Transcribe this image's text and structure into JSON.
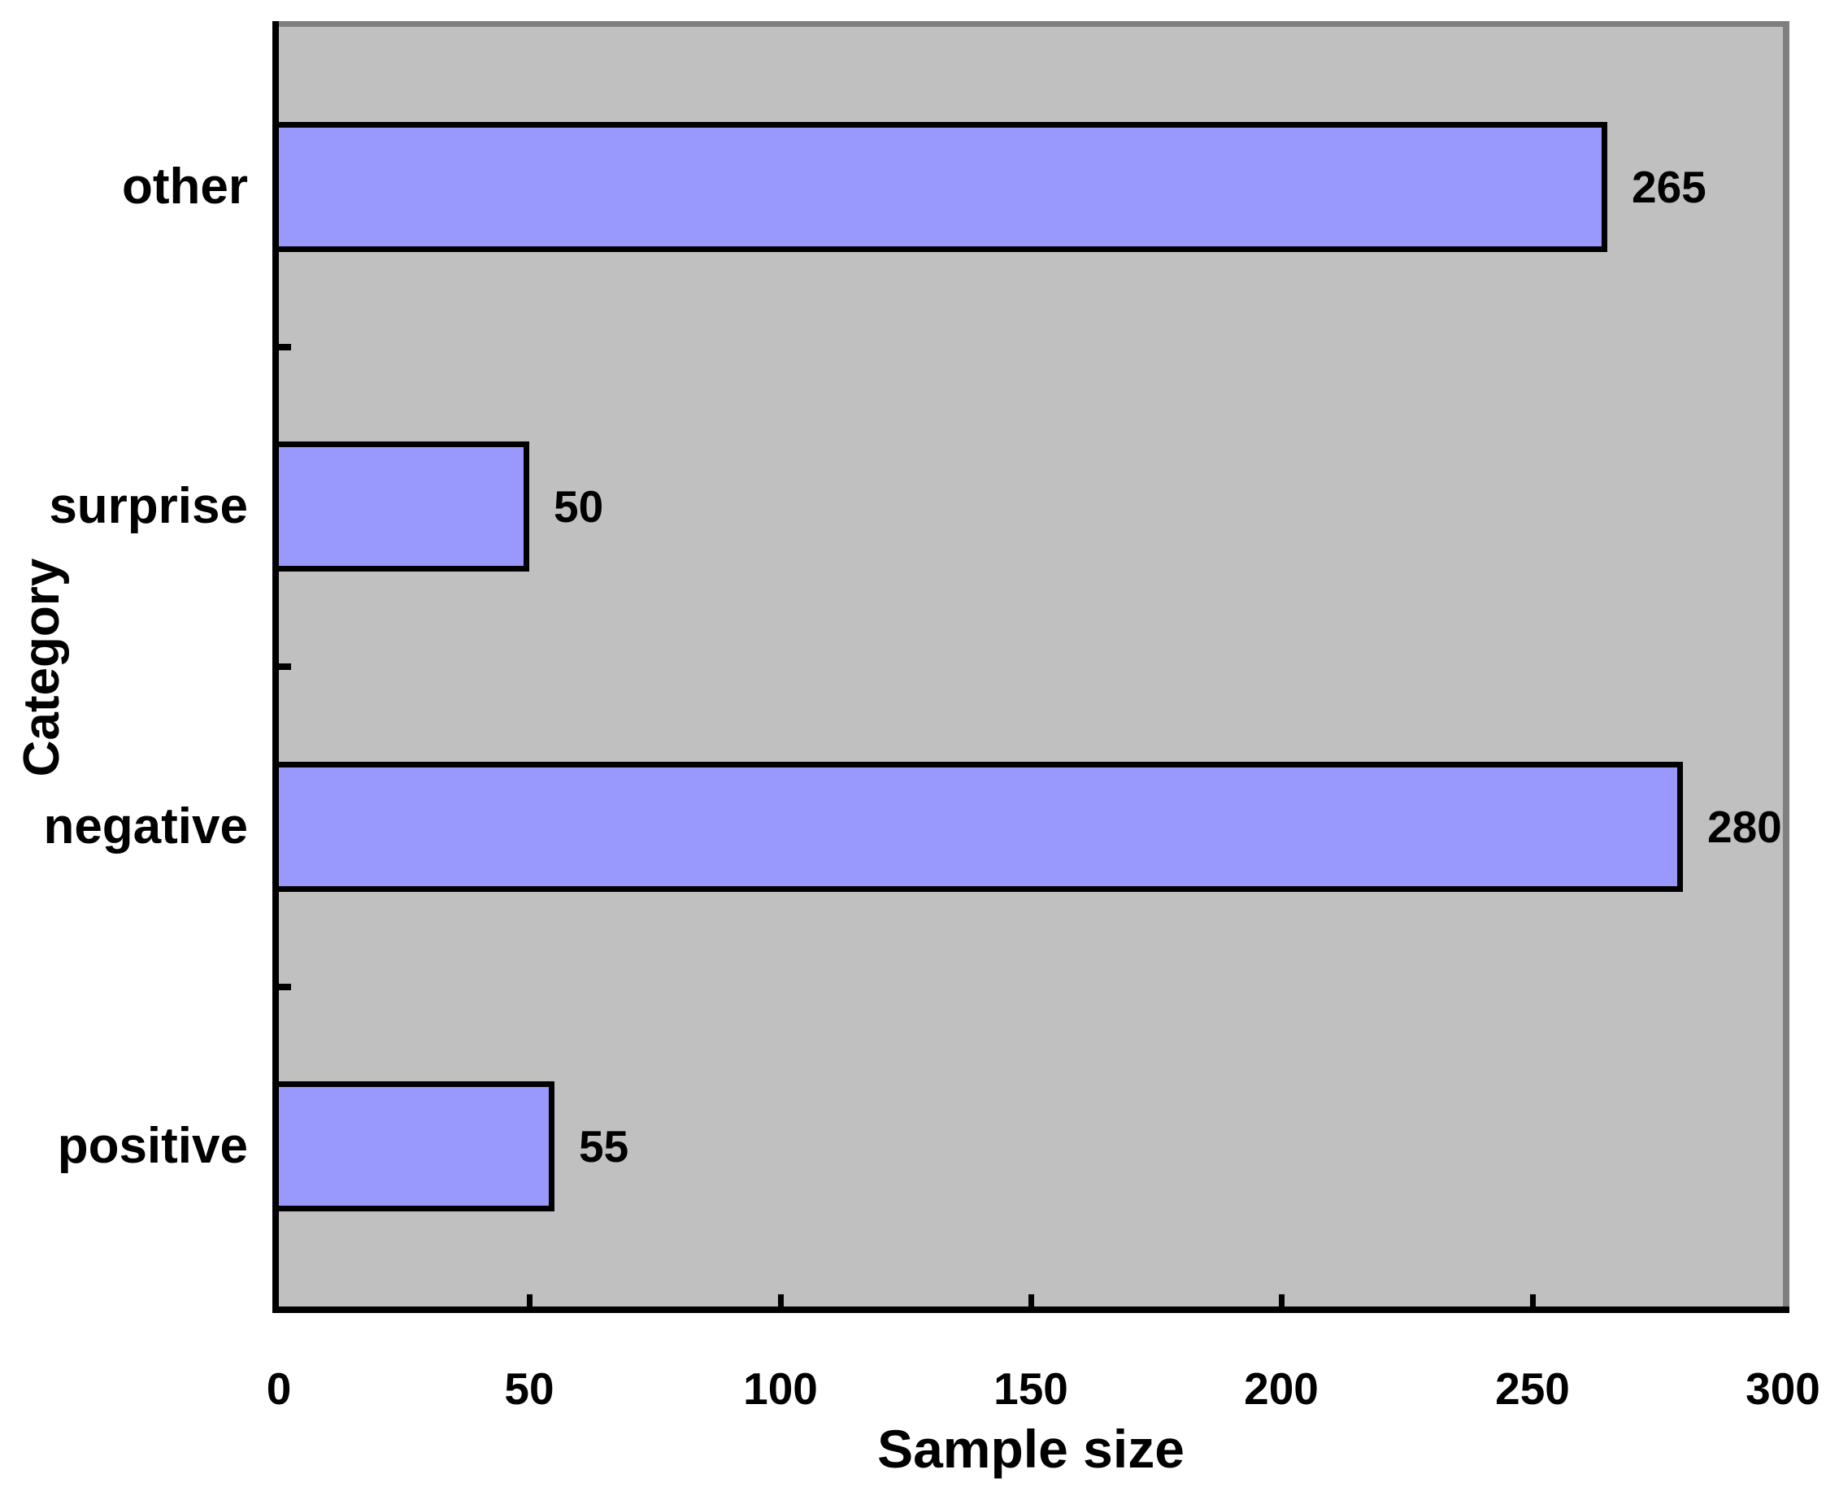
{
  "chart_data": {
    "type": "bar",
    "orientation": "horizontal",
    "title": "",
    "xlabel": "Sample size",
    "ylabel": "Category",
    "categories_top_to_bottom": [
      "other",
      "surprise",
      "negative",
      "positive"
    ],
    "values": [
      265,
      50,
      280,
      55
    ],
    "data_labels_visible": true,
    "xlim": [
      0,
      300
    ],
    "xticks": [
      0,
      50,
      100,
      150,
      200,
      250,
      300
    ],
    "grid": "off",
    "legend": "none",
    "colors": {
      "bar_fill": "#9999FC",
      "bar_border": "#000000",
      "plot_background": "#C0C0C0",
      "plot_outer_border": "#7F7F7F",
      "axis_line": "#000000",
      "text": "#000000",
      "page_background": "#FFFFFF"
    }
  }
}
